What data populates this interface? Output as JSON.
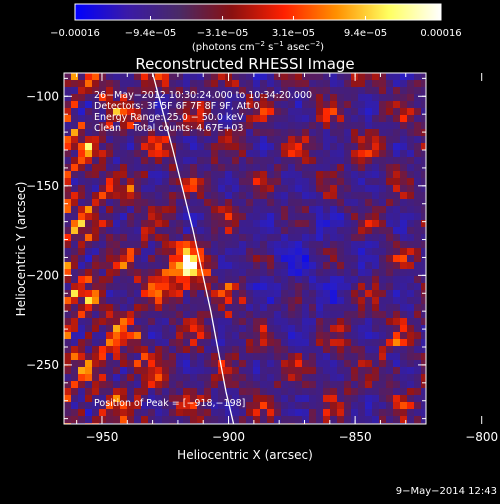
{
  "chart_data": {
    "type": "heatmap",
    "title": "Reconstructed RHESSI Image",
    "xlabel": "Heliocentric X (arcsec)",
    "ylabel": "Heliocentric Y (arcsec)",
    "xlim": [
      -965,
      -822
    ],
    "ylim": [
      -283,
      -87
    ],
    "x_ticks": [
      -950,
      -900,
      -850,
      -800
    ],
    "x_tick_labels": [
      "−950",
      "−900",
      "−850",
      "−800"
    ],
    "y_ticks": [
      -100,
      -150,
      -200,
      -250
    ],
    "y_tick_labels": [
      "−100",
      "−150",
      "−200",
      "−250"
    ],
    "colorbar": {
      "range": [
        -0.00016,
        0.00016
      ],
      "ticks": [
        -0.00016,
        -9.4e-05,
        -3.1e-05,
        3.1e-05,
        9.4e-05,
        0.00016
      ],
      "tick_labels": [
        "−0.00016",
        "−9.4e−05",
        "−3.1e−05",
        "3.1e−05",
        "9.4e−05",
        "0.00016"
      ],
      "label": "(photons cm",
      "label_exp1": "−2",
      "label_mid": " s",
      "label_exp2": "−1",
      "label_mid2": " asec",
      "label_exp3": "−2",
      "label_end": ")",
      "colors": [
        "#0000ff",
        "#3a1aa8",
        "#4a2a66",
        "#8a1010",
        "#ff2000",
        "#ff9000",
        "#ffff60",
        "#ffffff"
      ]
    },
    "annotations": [
      "26−May−2012 10:30:24.000 to 10:34:20.000",
      "Detectors: 3F 5F 6F 7F 8F 9F, Att 0",
      "Energy Range: 25.0 − 50.0 keV",
      "Clean    Total counts: 4.67E+03"
    ],
    "peak_text": "Position of Peak = [−918,−198]",
    "peak_position": [
      -918,
      -198
    ],
    "limb_curve": [
      [
        -930,
        -87
      ],
      [
        -922,
        -130
      ],
      [
        -914,
        -175
      ],
      [
        -907,
        -220
      ],
      [
        -901,
        -265
      ],
      [
        -898,
        -283
      ]
    ],
    "footer_date": "9−May−2014 12:43"
  }
}
